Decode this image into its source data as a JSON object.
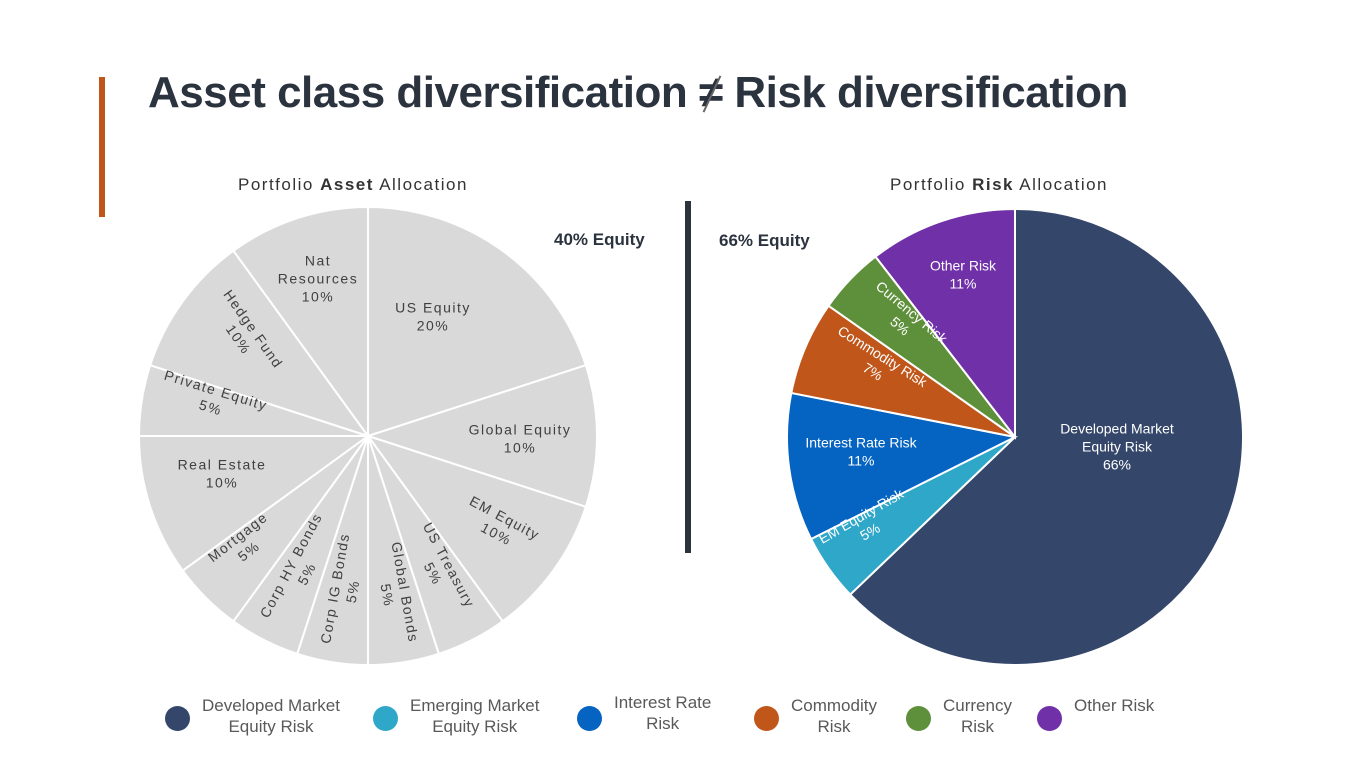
{
  "title": {
    "left": "Asset class diversification",
    "symbol": "≠",
    "right": "Risk diversification"
  },
  "asset_chart_title": {
    "pre": "Portfolio ",
    "bold": "Asset",
    "post": " Allocation"
  },
  "risk_chart_title": {
    "pre": "Portfolio ",
    "bold": "Risk",
    "post": " Allocation"
  },
  "asset_equity_note": "40% Equity",
  "risk_equity_note": "66% Equity",
  "chart_data": [
    {
      "type": "pie",
      "title": "Portfolio Asset Allocation",
      "categories": [
        "US Equity",
        "Global Equity",
        "EM Equity",
        "US Treasury",
        "Global Bonds",
        "Corp IG Bonds",
        "Corp HY Bonds",
        "Mortgage",
        "Real Estate",
        "Private Equity",
        "Hedge Fund",
        "Nat Resources"
      ],
      "values": [
        20,
        10,
        10,
        5,
        5,
        5,
        5,
        5,
        10,
        5,
        10,
        10
      ],
      "labels": [
        "20%",
        "10%",
        "10%",
        "5%",
        "5%",
        "5%",
        "5%",
        "5%",
        "10%",
        "5%",
        "10%",
        "10%"
      ],
      "name_lines": [
        [
          "US Equity"
        ],
        [
          "Global Equity"
        ],
        [
          "EM Equity"
        ],
        [
          "US Treasury"
        ],
        [
          "Global Bonds"
        ],
        [
          "Corp IG Bonds"
        ],
        [
          "Corp HY Bonds"
        ],
        [
          "Mortgage"
        ],
        [
          "Real Estate"
        ],
        [
          "Private Equity"
        ],
        [
          "Hedge Fund"
        ],
        [
          "Nat",
          "Resources"
        ]
      ],
      "color": "#d9d9d9"
    },
    {
      "type": "pie",
      "title": "Portfolio Risk Allocation",
      "categories": [
        "Developed Market Equity Risk",
        "EM Equity Risk",
        "Interest Rate Risk",
        "Commodity Risk",
        "Currency Risk",
        "Other Risk"
      ],
      "values": [
        66,
        5,
        11,
        7,
        5,
        11
      ],
      "labels": [
        "66%",
        "5%",
        "11%",
        "7%",
        "5%",
        "11%"
      ],
      "name_lines": [
        [
          "Developed Market",
          "Equity Risk"
        ],
        [
          "EM Equity Risk"
        ],
        [
          "Interest Rate Risk"
        ],
        [
          "Commodity Risk"
        ],
        [
          "Currency Risk"
        ],
        [
          "Other Risk"
        ]
      ],
      "colors": [
        "#34466a",
        "#2ea7c9",
        "#0563c1",
        "#c0561a",
        "#5e8f3a",
        "#7030a8"
      ],
      "legend": {
        "position": "bottom"
      }
    }
  ],
  "legend": [
    {
      "lines": [
        "Developed Market",
        "Equity Risk"
      ],
      "color": "#34466a"
    },
    {
      "lines": [
        "Emerging Market",
        "Equity Risk"
      ],
      "color": "#2ea7c9"
    },
    {
      "lines": [
        "Interest Rate",
        "Risk"
      ],
      "color": "#0563c1"
    },
    {
      "lines": [
        "Commodity",
        "Risk"
      ],
      "color": "#c0561a"
    },
    {
      "lines": [
        "Currency",
        "Risk"
      ],
      "color": "#5e8f3a"
    },
    {
      "lines": [
        "Other Risk"
      ],
      "color": "#7030a8"
    }
  ],
  "colors": {
    "accent": "#c0561a",
    "title": "#2b333f"
  }
}
